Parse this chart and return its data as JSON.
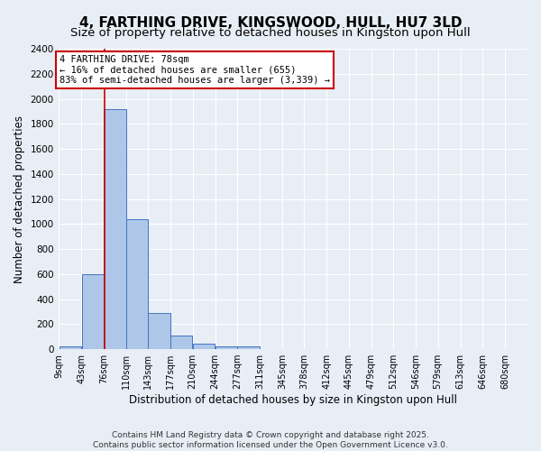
{
  "title": "4, FARTHING DRIVE, KINGSWOOD, HULL, HU7 3LD",
  "subtitle": "Size of property relative to detached houses in Kingston upon Hull",
  "xlabel": "Distribution of detached houses by size in Kingston upon Hull",
  "ylabel": "Number of detached properties",
  "bin_edges": [
    9,
    43,
    76,
    110,
    143,
    177,
    210,
    244,
    277,
    311,
    345,
    378,
    412,
    445,
    479,
    512,
    546,
    579,
    613,
    646,
    680
  ],
  "bar_heights": [
    20,
    600,
    1920,
    1040,
    290,
    110,
    45,
    20,
    20,
    0,
    0,
    0,
    0,
    0,
    0,
    0,
    0,
    0,
    0,
    0
  ],
  "bar_color": "#aec6e8",
  "bar_edge_color": "#4472c4",
  "background_color": "#e8eef6",
  "grid_color": "#ffffff",
  "property_size": 78,
  "red_line_color": "#cc0000",
  "annotation_text": "4 FARTHING DRIVE: 78sqm\n← 16% of detached houses are smaller (655)\n83% of semi-detached houses are larger (3,339) →",
  "annotation_box_color": "#ffffff",
  "annotation_box_edge_color": "#cc0000",
  "ylim": [
    0,
    2400
  ],
  "yticks": [
    0,
    200,
    400,
    600,
    800,
    1000,
    1200,
    1400,
    1600,
    1800,
    2000,
    2200,
    2400
  ],
  "title_fontsize": 11,
  "subtitle_fontsize": 9.5,
  "xlabel_fontsize": 8.5,
  "ylabel_fontsize": 8.5,
  "tick_fontsize": 7.5,
  "annotation_fontsize": 7.5,
  "footer_text": "Contains HM Land Registry data © Crown copyright and database right 2025.\nContains public sector information licensed under the Open Government Licence v3.0.",
  "footer_fontsize": 6.5
}
